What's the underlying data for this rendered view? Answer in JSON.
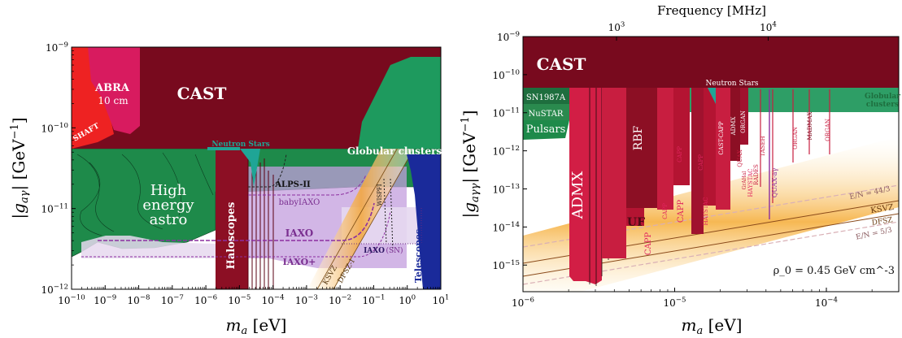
{
  "colors": {
    "cast": "#780a1e",
    "haloscope": "#d21e45",
    "haloscope_dark": "#9c1430",
    "astro_green": "#1e8a4a",
    "globular": "#2e9e66",
    "neutron": "#1fa596",
    "shaft": "#ee2222",
    "abra": "#d81b5f",
    "iaxo_fill": "#b08ad0",
    "iaxo_line": "#8c2fa0",
    "telescopes": "#1a2a9a",
    "qcd_band": "#f5b043"
  },
  "chart_data": [
    {
      "type": "area",
      "xlabel": "m_a [eV]",
      "ylabel": "|g_aγ| [GeV^-1]",
      "xscale": "log",
      "yscale": "log",
      "xlim": [
        1e-10,
        10
      ],
      "ylim": [
        1e-12,
        1e-09
      ],
      "x_ticks": [
        "10^-10",
        "10^-9",
        "10^-8",
        "10^-7",
        "10^-6",
        "10^-5",
        "10^-4",
        "10^-3",
        "10^-2",
        "10^-1",
        "10^0",
        "10^1"
      ],
      "y_ticks": [
        "10^-12",
        "10^-11",
        "10^-10",
        "10^-9"
      ],
      "regions": [
        {
          "name": "CAST",
          "x": [
            1e-10,
            0.02
          ],
          "y_min": 6.6e-11
        },
        {
          "name": "SHAFT",
          "x": [
            1e-10,
            1.5e-09
          ],
          "y_min": 1e-10
        },
        {
          "name": "ABRA 10 cm",
          "x": [
            1e-09,
            1e-08
          ],
          "y_min": 1.5e-10
        },
        {
          "name": "Neutron Stars",
          "x": [
            1e-05,
            3e-05
          ],
          "y_min": 3.5e-11
        },
        {
          "name": "Globular clusters",
          "x": [
            1e-10,
            10
          ],
          "y_min": 6.6e-11
        },
        {
          "name": "High energy astro",
          "x": [
            1e-10,
            1e-05
          ],
          "y_min": 2e-12
        },
        {
          "name": "Haloscopes",
          "x": [
            1.5e-06,
            4e-05
          ],
          "y_min": 1e-12
        },
        {
          "name": "Telescopes",
          "x": [
            2,
            10
          ],
          "y_min": 1e-12
        }
      ],
      "projections": [
        {
          "name": "ALPS-II",
          "y": 2e-11,
          "x_max": 0.0001
        },
        {
          "name": "babyIAXO",
          "y": 1.5e-11,
          "x_max": 0.02
        },
        {
          "name": "IAXO",
          "y": 4e-12,
          "x_max": 0.05
        },
        {
          "name": "IAXO+",
          "y": 2.3e-12,
          "x_max": 0.05
        },
        {
          "name": "IAXO (SN)",
          "y": 3e-12,
          "x_max": 1
        },
        {
          "name": "WISPFI",
          "x": 0.05
        }
      ],
      "lines": [
        "KSVZ",
        "DFSZ-I"
      ],
      "text_labels": [
        "CAST",
        "SHAFT",
        "ABRA",
        "10 cm",
        "Neutron Stars",
        "Globular clusters",
        "ALPS-II",
        "High",
        "energy",
        "astro",
        "babyIAXO",
        "IAXO",
        "IAXO+",
        "IAXO",
        "(SN)",
        "Haloscopes",
        "Telescopes",
        "KSVZ",
        "DFSZ-I",
        "WISPFI"
      ]
    },
    {
      "type": "area",
      "xlabel": "m_a [eV]",
      "ylabel": "|g_aγγ| [GeV^-1]",
      "top_xlabel": "Frequency [MHz]",
      "xscale": "log",
      "yscale": "log",
      "xlim": [
        1e-06,
        0.0003
      ],
      "ylim": [
        2e-16,
        1e-09
      ],
      "x_ticks": [
        "10^-6",
        "10^-5",
        "10^-4"
      ],
      "y_ticks": [
        "10^-15",
        "10^-14",
        "10^-13",
        "10^-12",
        "10^-11",
        "10^-10",
        "10^-9"
      ],
      "top_ticks": [
        "10^3",
        "10^4"
      ],
      "annotation": "ρ_0 = 0.45 GeV cm^-3",
      "regions": [
        {
          "name": "CAST",
          "y_min": 6.6e-11
        },
        {
          "name": "SN1987A",
          "y_min": 5.3e-11
        },
        {
          "name": "NuSTAR",
          "y_min": 3.4e-11
        },
        {
          "name": "Pulsars",
          "y_min": 1.7e-11
        },
        {
          "name": "Globular clusters",
          "y_min": 6.6e-11
        },
        {
          "name": "Neutron Stars",
          "x": [
            1.8e-05,
            2.6e-05
          ],
          "y_min": 1e-11
        },
        {
          "name": "ADMX",
          "x": [
            2.2e-06,
            4.2e-06
          ],
          "y_min": 3e-16
        },
        {
          "name": "RBF",
          "x": [
            5.4e-06,
            7e-06
          ],
          "y_min": 1.5e-13
        },
        {
          "name": "UF",
          "x": [
            4.5e-06,
            4.8e-06
          ],
          "y_min": 1.5e-14
        },
        {
          "name": "CAPP",
          "x": [
            3.6e-06,
            2.1e-05
          ],
          "y_min": 3e-16
        },
        {
          "name": "HAYSTAC",
          "x": [
            1.6e-05,
            2.4e-05
          ],
          "y_min": 2e-14
        },
        {
          "name": "ORGAN",
          "x": [
            6e-05,
            0.00013
          ],
          "y_min": 3e-12
        },
        {
          "name": "MADMAX",
          "x": [
            7.5e-05,
            8e-05
          ],
          "y_min": 2e-12
        },
        {
          "name": "QUAX-aγ",
          "x": [
            4.2e-05,
            4.5e-05
          ],
          "y_min": 5e-14
        }
      ],
      "lines": [
        {
          "name": "E/N = 44/3"
        },
        {
          "name": "KSVZ"
        },
        {
          "name": "DFSZ"
        },
        {
          "name": "E/N = 5/3"
        }
      ],
      "text_labels": [
        "CAST",
        "SN1987A",
        "NuSTAR",
        "Pulsars",
        "Neutron Stars",
        "Globular",
        "clusters",
        "ADMX",
        "RBF",
        "UF",
        "CAPP",
        "CAPP",
        "CAPP",
        "CAPP",
        "CAPP",
        "HAYSTAC",
        "HAYSTAC",
        "CAST-CAPP",
        "ADMX",
        "ORGAN",
        "ORGAN",
        "ORGAN",
        "TASEH",
        "RADES",
        "QUAX-aγ",
        "MADMAX",
        "QUAX",
        "GrAHal",
        "E/N = 44/3",
        "KSVZ",
        "DFSZ",
        "E/N = 5/3"
      ]
    }
  ]
}
